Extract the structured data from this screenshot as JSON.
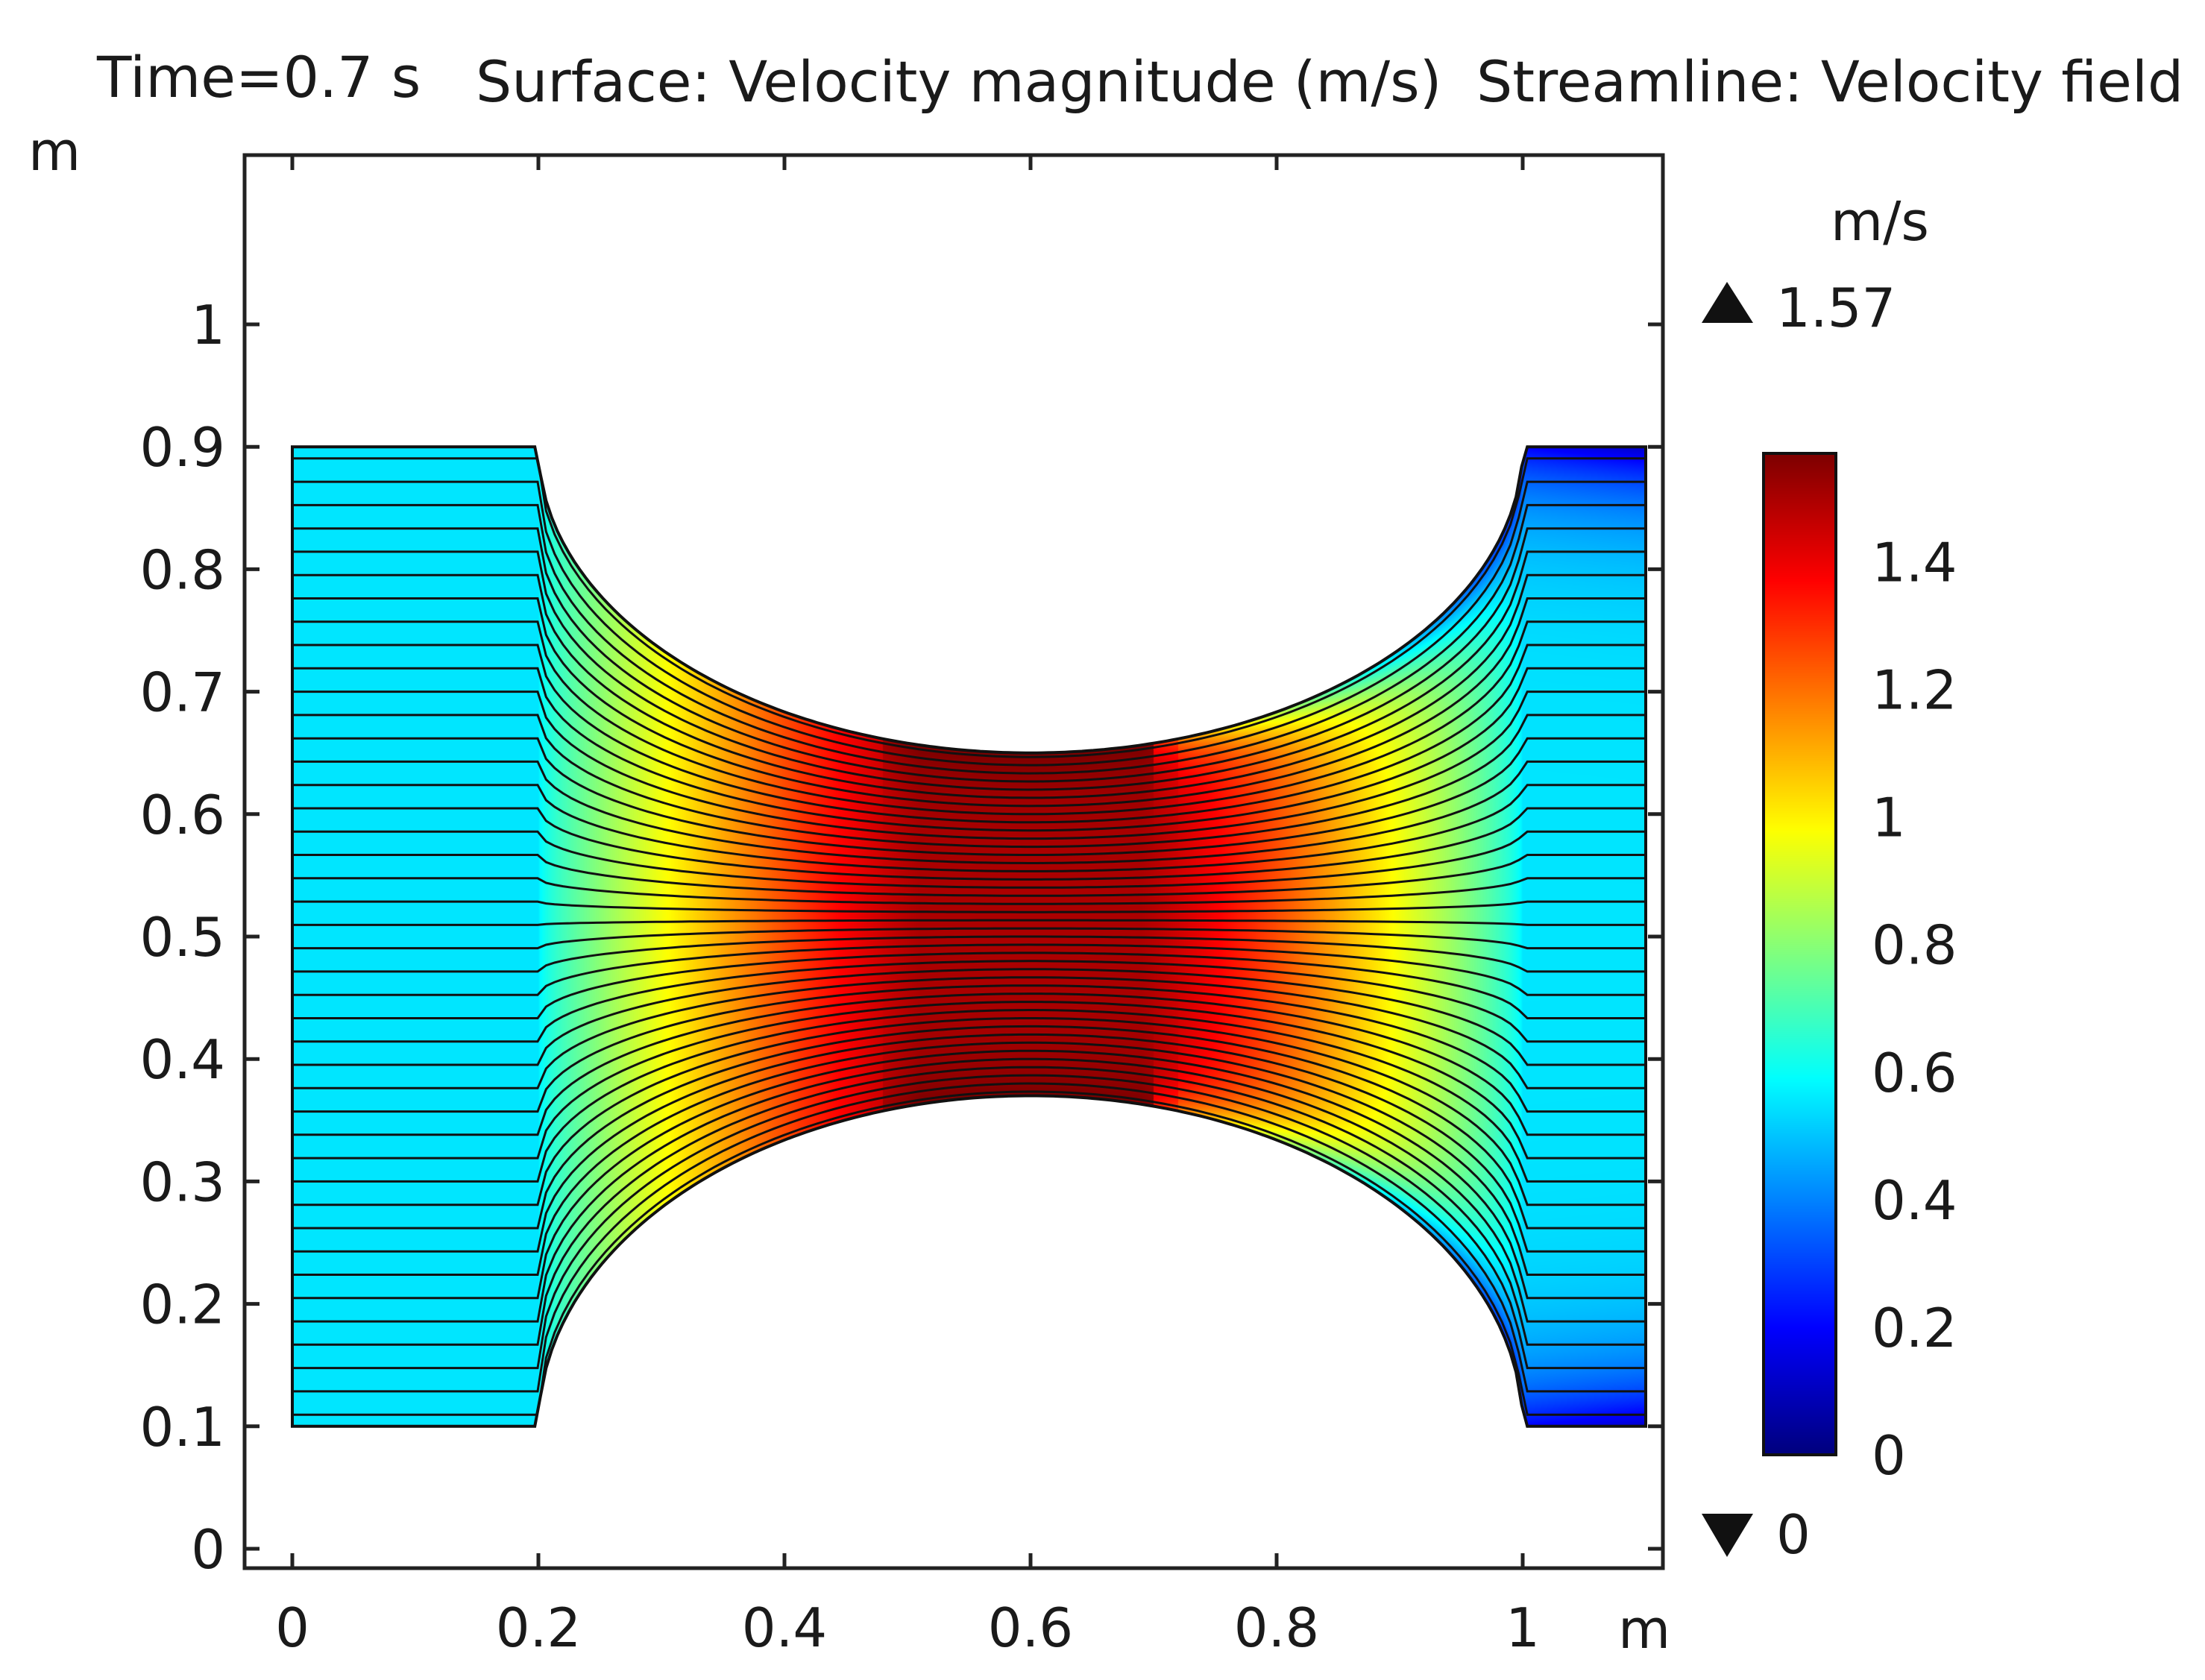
{
  "chart_data": {
    "type": "heatmap",
    "title": {
      "time": "Time=0.7 s",
      "surface": "Surface: Velocity magnitude (m/s)",
      "streamline": "Streamline: Velocity field"
    },
    "x_axis": {
      "unit": "m",
      "range": [
        -0.05,
        1.12
      ],
      "ticks": [
        0,
        0.2,
        0.4,
        0.6,
        0.8,
        1
      ],
      "tick_labels": [
        "0",
        "0.2",
        "0.4",
        "0.6",
        "0.8",
        "1"
      ]
    },
    "y_axis": {
      "unit": "m",
      "range": [
        -0.01,
        1.14
      ],
      "ticks": [
        0,
        0.1,
        0.2,
        0.3,
        0.4,
        0.5,
        0.6,
        0.7,
        0.8,
        0.9,
        1
      ],
      "tick_labels": [
        "0",
        "0.1",
        "0.2",
        "0.3",
        "0.4",
        "0.5",
        "0.6",
        "0.7",
        "0.8",
        "0.9",
        "1"
      ]
    },
    "domain": {
      "x_min": 0,
      "x_max": 1.1,
      "y_min": 0.1,
      "y_max": 0.9,
      "throat_x": 0.6,
      "throat_y_top": 0.65,
      "throat_y_bottom": 0.37,
      "wall_start_x": 0.2,
      "wall_end_x": 1.0
    },
    "colorbar": {
      "unit": "m/s",
      "max_label": "1.57",
      "min_label": "0",
      "range": [
        0,
        1.57
      ],
      "ticks": [
        0,
        0.2,
        0.4,
        0.6,
        0.8,
        1,
        1.2,
        1.4
      ],
      "tick_labels": [
        "0",
        "0.2",
        "0.4",
        "0.6",
        "0.8",
        "1",
        "1.2",
        "1.4"
      ],
      "colormap": [
        "#00007f",
        "#0000ff",
        "#007fff",
        "#00ffff",
        "#7fff7f",
        "#ffff00",
        "#ff7f00",
        "#ff0000",
        "#7f0000"
      ]
    },
    "velocity_field": {
      "inlet_speed": 0.55,
      "outlet_speed": 0.55,
      "throat_speed": 1.5,
      "max_speed": 1.57
    },
    "streamline_count": 42
  }
}
